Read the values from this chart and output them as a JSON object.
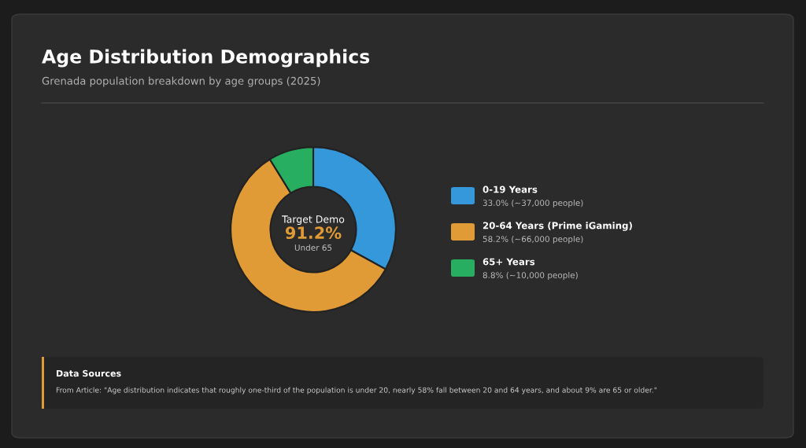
{
  "chart_data": {
    "type": "donut",
    "title": "Age Distribution Demographics",
    "subtitle": "Grenada population breakdown by age groups (2025)",
    "categories": [
      "0-19 Years",
      "20-64 Years (Prime iGaming)",
      "65+ Years"
    ],
    "values": [
      33.0,
      58.2,
      8.8
    ],
    "colors": [
      "#3498db",
      "#e09a36",
      "#27ae60"
    ],
    "value_labels": [
      "33.0% (~37,000 people)",
      "58.2% (~66,000 people)",
      "8.8% (~10,000 people)"
    ],
    "legend": "right",
    "annotations": [
      "Target Demo",
      "91.2%",
      "Under 65",
      "Data Sources",
      "From Article: \"Age distribution indicates that roughly one-third of the population is under 20, nearly 58% fall between 20 and 64 years, and about 9% are 65 or older.\""
    ]
  }
}
